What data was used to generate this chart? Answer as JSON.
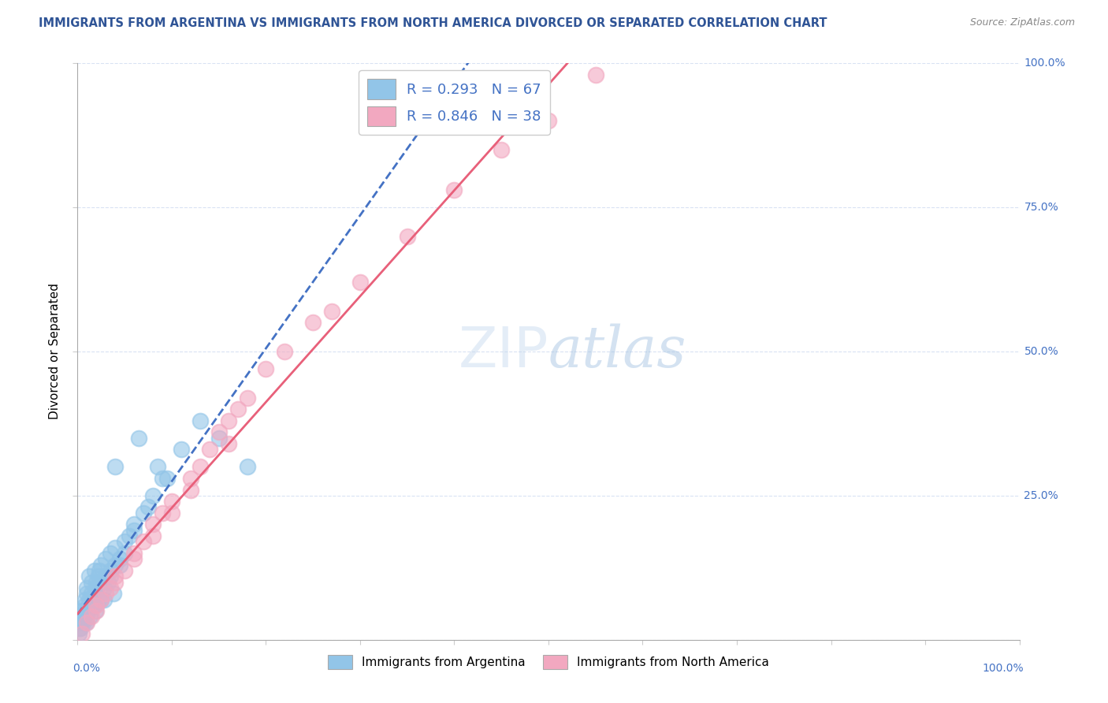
{
  "title": "IMMIGRANTS FROM ARGENTINA VS IMMIGRANTS FROM NORTH AMERICA DIVORCED OR SEPARATED CORRELATION CHART",
  "source": "Source: ZipAtlas.com",
  "ylabel": "Divorced or Separated",
  "legend_label1": "Immigrants from Argentina",
  "legend_label2": "Immigrants from North America",
  "r1": 0.293,
  "n1": 67,
  "r2": 0.846,
  "n2": 38,
  "watermark": "ZIPatlas",
  "blue_color": "#92C5E8",
  "pink_color": "#F2A8C0",
  "blue_line_color": "#4472C4",
  "pink_line_color": "#E8607A",
  "title_color": "#2F5496",
  "axis_label_color": "#4472C4",
  "grid_color": "#D9E2F3",
  "background_color": "#FFFFFF",
  "blue_x": [
    0.5,
    1.0,
    1.5,
    1.8,
    2.0,
    2.2,
    2.5,
    2.8,
    3.0,
    3.2,
    3.5,
    3.8,
    4.0,
    4.5,
    5.0,
    5.5,
    6.0,
    7.0,
    8.0,
    9.0,
    0.3,
    0.5,
    0.8,
    1.0,
    1.2,
    1.5,
    1.8,
    2.0,
    2.3,
    2.5,
    0.2,
    0.4,
    0.6,
    0.8,
    1.0,
    1.2,
    1.5,
    1.8,
    2.0,
    2.5,
    3.0,
    3.5,
    4.0,
    5.0,
    0.1,
    0.3,
    0.5,
    0.7,
    0.9,
    1.1,
    1.3,
    1.6,
    1.9,
    2.2,
    2.8,
    3.5,
    4.5,
    6.0,
    7.5,
    9.5,
    11.0,
    13.0,
    15.0,
    18.0,
    4.0,
    6.5,
    8.5
  ],
  "blue_y": [
    5.0,
    8.0,
    10.0,
    12.0,
    9.0,
    11.0,
    13.0,
    7.0,
    14.0,
    10.0,
    15.0,
    8.0,
    16.0,
    13.0,
    17.0,
    18.0,
    20.0,
    22.0,
    25.0,
    28.0,
    3.0,
    5.0,
    7.0,
    9.0,
    11.0,
    6.0,
    8.0,
    10.0,
    12.0,
    7.0,
    2.0,
    4.0,
    3.0,
    6.0,
    5.0,
    7.0,
    8.0,
    6.0,
    9.0,
    10.0,
    11.0,
    12.0,
    13.0,
    15.0,
    1.0,
    2.0,
    3.0,
    4.0,
    3.0,
    5.0,
    4.0,
    6.0,
    5.0,
    7.0,
    9.0,
    11.0,
    14.0,
    19.0,
    23.0,
    28.0,
    33.0,
    38.0,
    35.0,
    30.0,
    30.0,
    35.0,
    30.0
  ],
  "pink_x": [
    0.5,
    1.0,
    1.5,
    2.0,
    2.5,
    3.0,
    3.5,
    4.0,
    5.0,
    6.0,
    7.0,
    8.0,
    9.0,
    10.0,
    12.0,
    13.0,
    14.0,
    15.0,
    16.0,
    17.0,
    18.0,
    20.0,
    22.0,
    25.0,
    27.0,
    30.0,
    35.0,
    40.0,
    45.0,
    50.0,
    2.0,
    4.0,
    6.0,
    8.0,
    10.0,
    12.0,
    16.0,
    55.0
  ],
  "pink_y": [
    1.0,
    3.0,
    4.0,
    5.0,
    7.0,
    8.0,
    9.0,
    11.0,
    12.0,
    15.0,
    17.0,
    20.0,
    22.0,
    24.0,
    28.0,
    30.0,
    33.0,
    36.0,
    38.0,
    40.0,
    42.0,
    47.0,
    50.0,
    55.0,
    57.0,
    62.0,
    70.0,
    78.0,
    85.0,
    90.0,
    6.0,
    10.0,
    14.0,
    18.0,
    22.0,
    26.0,
    34.0,
    98.0
  ],
  "xlim": [
    0,
    100
  ],
  "ylim": [
    0,
    100
  ]
}
